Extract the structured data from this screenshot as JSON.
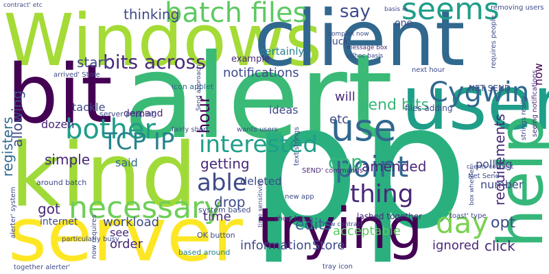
{
  "words": [
    "Windows",
    "client",
    "alert",
    "bit",
    "user",
    "pp",
    "kind",
    "server",
    "help",
    "trying",
    "necessary",
    "batch files",
    "seems",
    "Cygwin",
    "bother",
    "use",
    "interested",
    "TCP IP",
    "point",
    "able",
    "day",
    "thing",
    "bits across",
    "start",
    "thinking",
    "say",
    "notifications",
    "hour",
    "send bits",
    "cpp",
    "amended",
    "getting",
    "deleted",
    "drop",
    "time",
    "got",
    "internet",
    "workload",
    "edits",
    "acceptable",
    "information",
    "Store",
    "ignored",
    "click",
    "opt",
    "requirements",
    "polling",
    "number",
    "OK button",
    "based around",
    "order",
    "see",
    "simple",
    "said",
    "allowing",
    "registers",
    "dozen",
    "tackle",
    "demand",
    "etc",
    "will",
    "ideas",
    "certainly",
    "luck",
    "one",
    "example",
    "now",
    "icon applet",
    "files adding",
    "next hour",
    "NET SEND",
    "lashed together",
    "system based",
    "message box",
    "adhoc basis",
    "complex now",
    "basis ie",
    "removing users",
    "seeing notifications",
    "strings really",
    "requires people",
    "SEND' commands",
    "text strings",
    "fairly short",
    "short basic",
    "new app",
    "tray icon",
    "Net Send",
    "box whether",
    "toast' type",
    "time sensitivity",
    "wants users",
    "contract' etc",
    "arrived' Store",
    "around batch",
    "now requires",
    "together alerter'",
    "alerter' system",
    "particularly busy",
    "server popping",
    "Send approach",
    "clients connect",
    "new contract"
  ]
}
